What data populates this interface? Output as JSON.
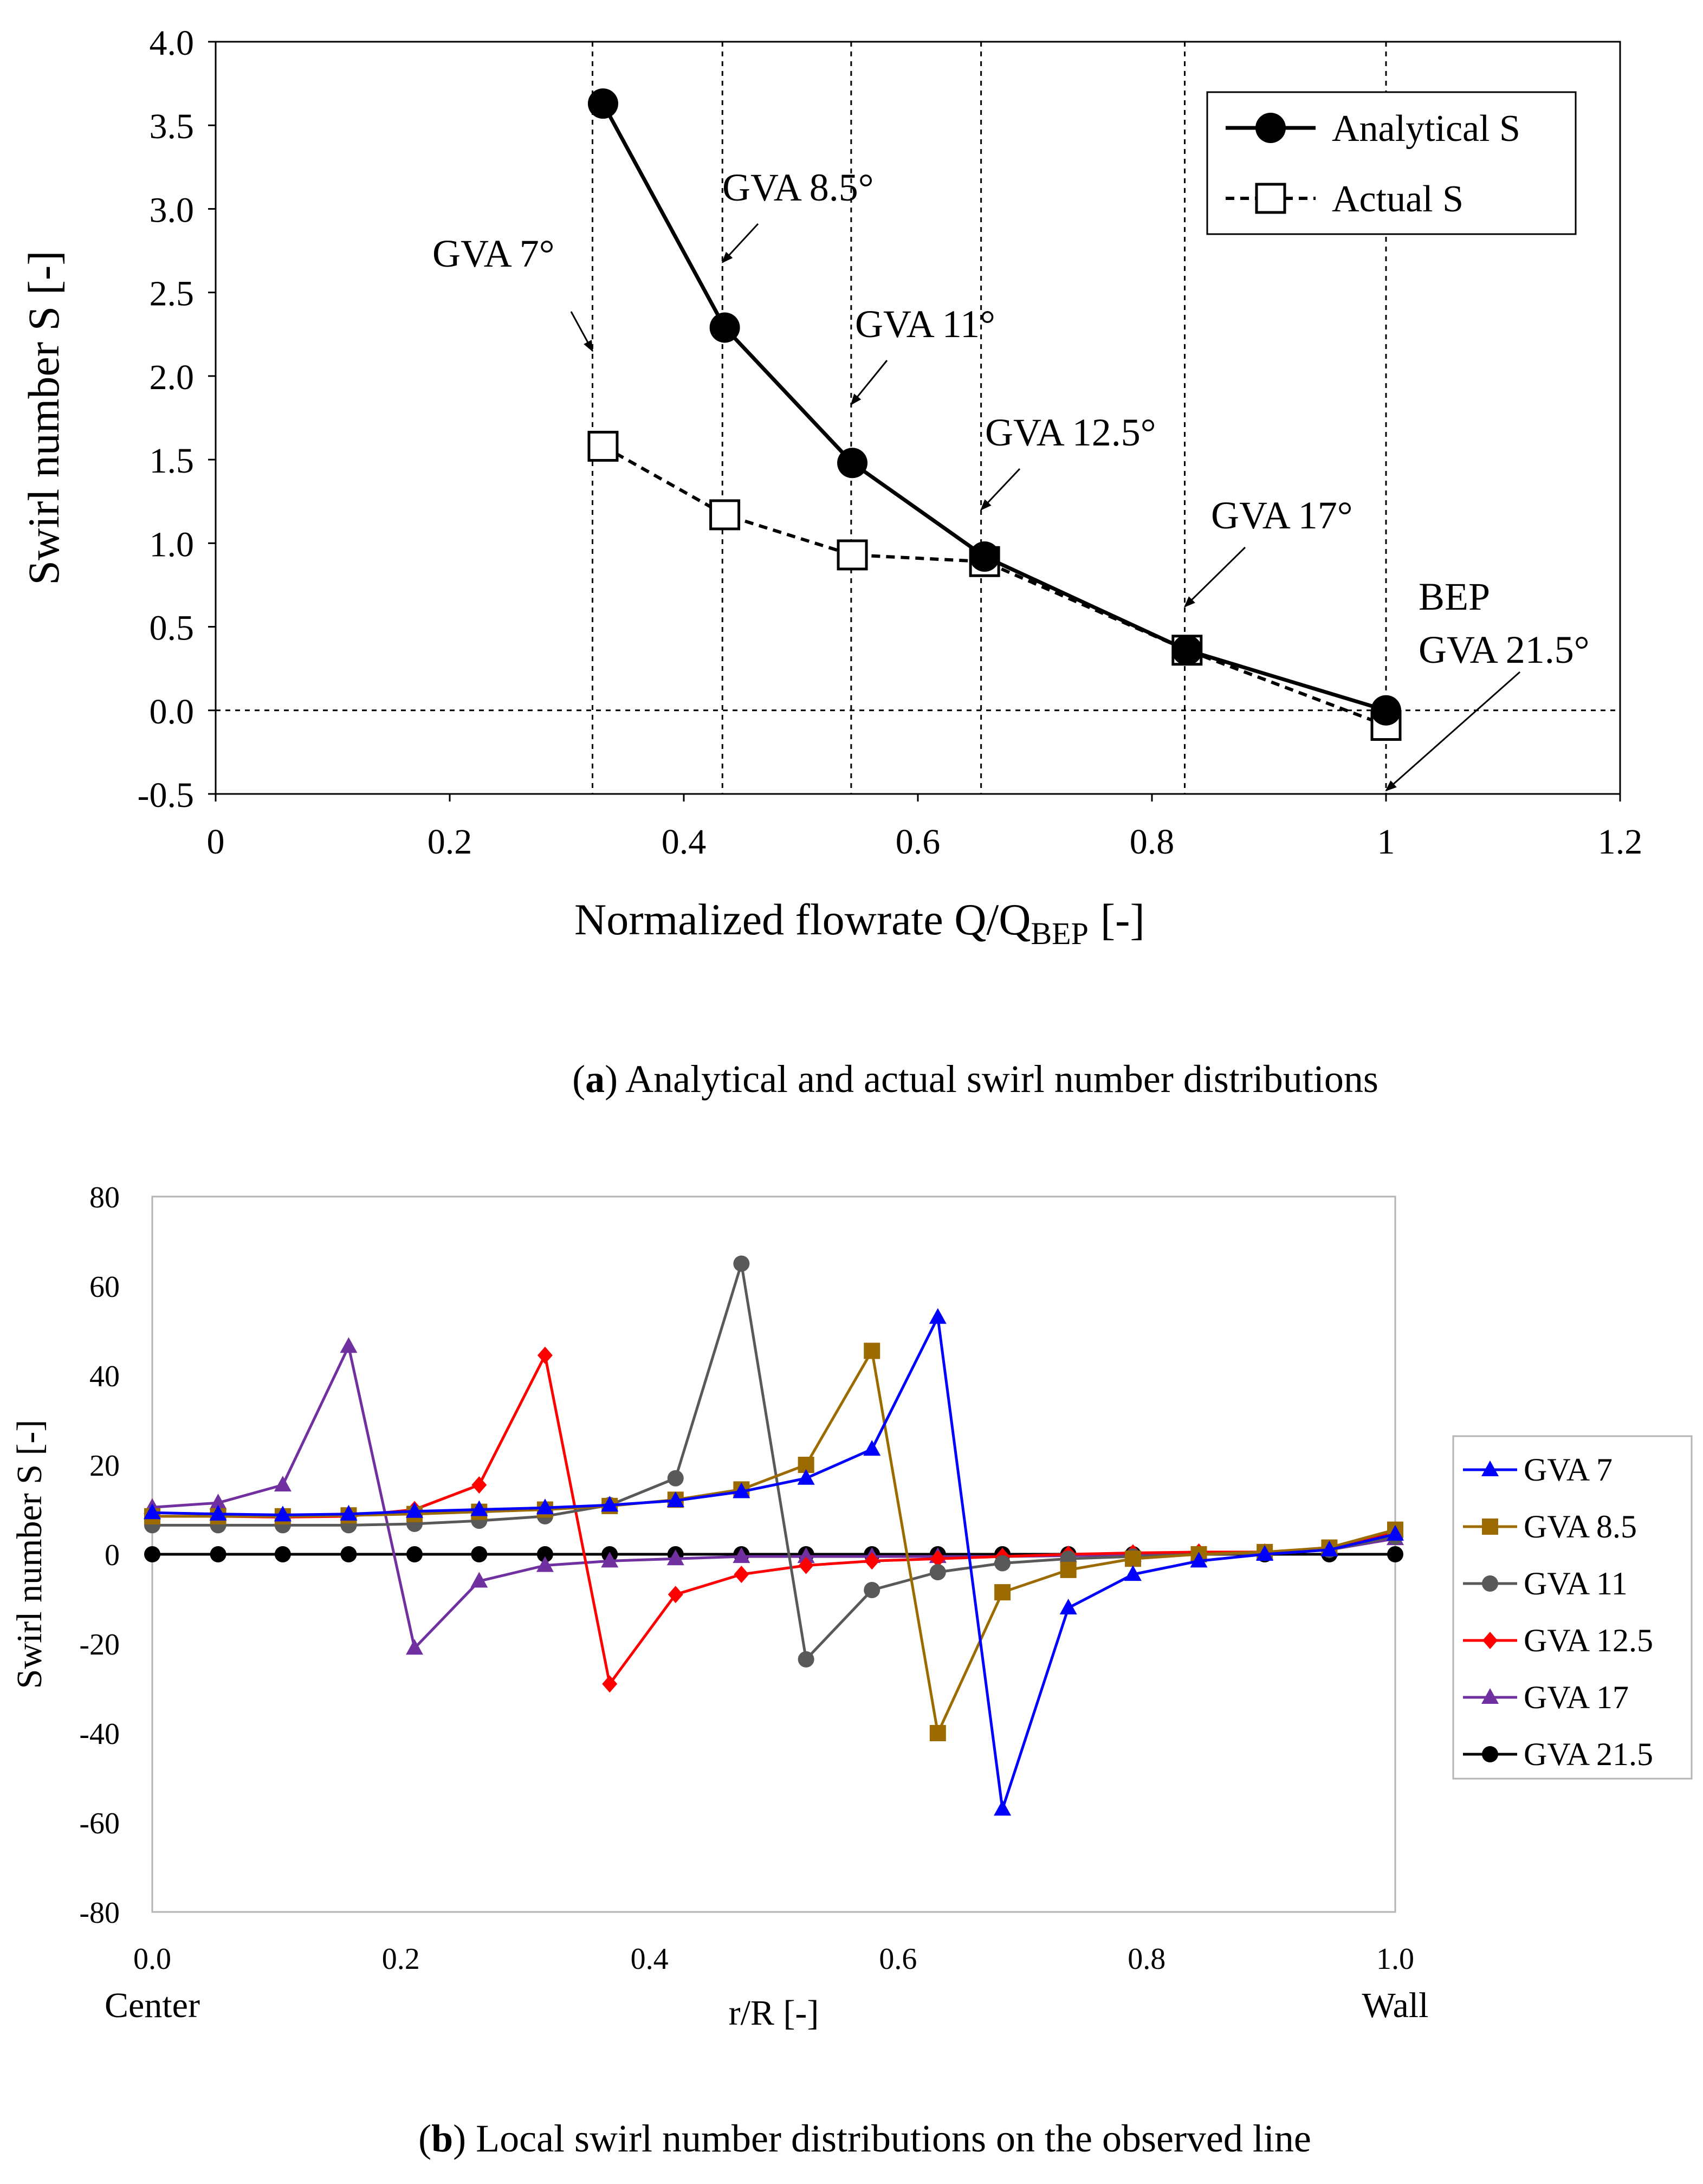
{
  "chart_data": [
    {
      "type": "line",
      "panel_label": "a",
      "caption": "Analytical and actual swirl number distributions",
      "xlabel_main": "Normalized flowrate Q/Q",
      "xlabel_sub": "BEP",
      "xlabel_end": "[-]",
      "ylabel": "Swirl number S [-]",
      "xlim": [
        0,
        1.2
      ],
      "ylim": [
        -0.5,
        4.0
      ],
      "xticks": [
        "0",
        "0.2",
        "0.4",
        "0.6",
        "0.8",
        "1",
        "1.2"
      ],
      "yticks": [
        "4.0",
        "3.5",
        "3.0",
        "2.5",
        "2.0",
        "1.5",
        "1.0",
        "0.5",
        "0.0",
        "-0.5"
      ],
      "reference_lines_x": [
        0.322,
        0.433,
        0.543,
        0.654,
        0.828,
        1.0
      ],
      "reference_line_y": 0,
      "legend": {
        "placement": "top-right"
      },
      "series": [
        {
          "name": "Analytical S",
          "style": "solid-filled-circle",
          "x": [
            0.331,
            0.435,
            0.544,
            0.657,
            0.83,
            1.0
          ],
          "y": [
            3.63,
            2.29,
            1.48,
            0.92,
            0.36,
            0.0
          ]
        },
        {
          "name": "Actual S",
          "style": "dashed-open-square",
          "x": [
            0.331,
            0.435,
            0.544,
            0.657,
            0.83,
            1.0
          ],
          "y": [
            1.58,
            1.17,
            0.93,
            0.89,
            0.36,
            -0.09
          ]
        }
      ],
      "annotations": [
        {
          "text": "GVA 7°",
          "arrow_to": [
            0.322,
            2.15
          ]
        },
        {
          "text": "GVA 8.5°",
          "arrow_to": [
            0.433,
            2.68
          ]
        },
        {
          "text": "GVA 11°",
          "arrow_to": [
            0.543,
            1.83
          ]
        },
        {
          "text": "GVA 12.5°",
          "arrow_to": [
            0.654,
            1.2
          ]
        },
        {
          "text": "GVA 17°",
          "arrow_to": [
            0.828,
            0.62
          ]
        },
        {
          "text": "BEP",
          "arrow_to": null
        },
        {
          "text": "GVA 21.5°",
          "arrow_to": [
            1.0,
            -0.48
          ]
        }
      ]
    },
    {
      "type": "line",
      "panel_label": "b",
      "caption": "Local swirl number distributions on the observed line",
      "xlabel": "r/R [-]",
      "xlabel_left": "Center",
      "xlabel_right": "Wall",
      "ylabel": "Swirl number S [-]",
      "xlim": [
        0,
        1.0
      ],
      "ylim": [
        -80,
        80
      ],
      "xticks": [
        "0.0",
        "0.2",
        "0.4",
        "0.6",
        "0.8",
        "1.0"
      ],
      "yticks": [
        "80",
        "60",
        "40",
        "20",
        "0",
        "-20",
        "-40",
        "-60",
        "-80"
      ],
      "legend": {
        "placement": "right"
      },
      "x": [
        0.0,
        0.053,
        0.105,
        0.158,
        0.211,
        0.263,
        0.316,
        0.368,
        0.421,
        0.474,
        0.526,
        0.579,
        0.632,
        0.684,
        0.737,
        0.789,
        0.842,
        0.895,
        0.947,
        1.0
      ],
      "series": [
        {
          "name": "GVA 7",
          "color": "#0000ff",
          "marker": "triangle",
          "values": [
            9.3,
            9.0,
            8.8,
            9.0,
            9.6,
            10.0,
            10.4,
            11.0,
            12.0,
            14.0,
            17.0,
            23.5,
            53.0,
            -57.0,
            -12.0,
            -4.5,
            -1.5,
            0.0,
            1.0,
            4.5
          ]
        },
        {
          "name": "GVA 8.5",
          "color": "#9c6b00",
          "marker": "square",
          "values": [
            8.5,
            8.5,
            8.5,
            8.7,
            9.0,
            9.5,
            10.0,
            10.8,
            12.2,
            14.5,
            20.0,
            45.5,
            -40.0,
            -8.5,
            -3.5,
            -1.0,
            0.0,
            0.5,
            1.5,
            5.5
          ]
        },
        {
          "name": "GVA 11",
          "color": "#595959",
          "marker": "circle",
          "values": [
            6.5,
            6.5,
            6.5,
            6.5,
            6.8,
            7.5,
            8.5,
            11.0,
            17.0,
            65.0,
            -23.5,
            -8.0,
            -4.0,
            -2.0,
            -1.0,
            -0.5,
            0.0,
            0.3,
            1.0,
            4.0
          ]
        },
        {
          "name": "GVA 12.5",
          "color": "#ff0000",
          "marker": "diamond",
          "values": [
            8.5,
            8.5,
            8.3,
            8.5,
            10.0,
            15.5,
            44.5,
            -29.0,
            -9.0,
            -4.5,
            -2.5,
            -1.5,
            -1.0,
            -0.5,
            0.0,
            0.3,
            0.5,
            0.5,
            1.0,
            5.0
          ]
        },
        {
          "name": "GVA 17",
          "color": "#7030a0",
          "marker": "triangle",
          "values": [
            10.5,
            11.5,
            15.5,
            46.5,
            -21.0,
            -6.0,
            -2.5,
            -1.5,
            -1.0,
            -0.5,
            -0.5,
            -0.5,
            -0.5,
            -0.5,
            -0.3,
            -0.2,
            0.0,
            0.2,
            1.0,
            3.5
          ]
        },
        {
          "name": "GVA 21.5",
          "color": "#000000",
          "marker": "circle",
          "values": [
            0,
            0,
            0,
            0,
            0,
            0,
            0,
            0,
            0,
            0,
            0,
            0,
            0,
            0,
            0,
            0,
            0,
            0,
            0,
            0
          ]
        }
      ]
    }
  ]
}
